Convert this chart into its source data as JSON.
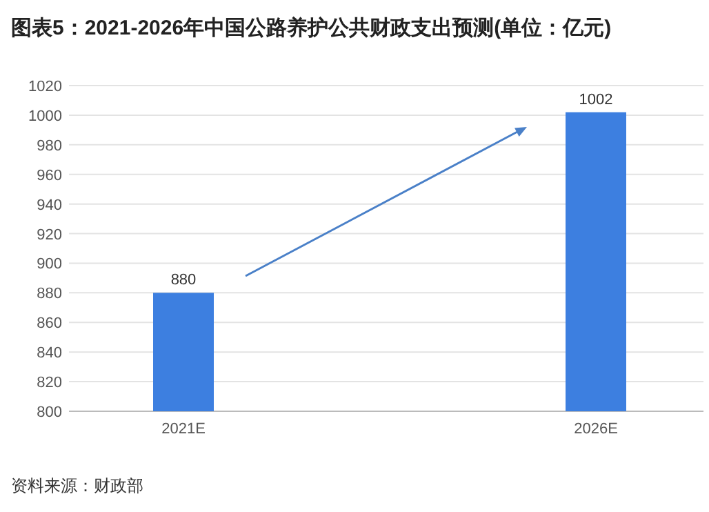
{
  "chart_data": {
    "type": "bar",
    "title": "图表5：2021-2026年中国公路养护公共财政支出预测(单位：亿元)",
    "categories": [
      "2021E",
      "2026E"
    ],
    "values": [
      880,
      1002
    ],
    "color": "#3d7fe0",
    "data_labels": true,
    "ylim": [
      800,
      1020
    ],
    "yticks": [
      800,
      820,
      840,
      860,
      880,
      900,
      920,
      940,
      960,
      980,
      1000,
      1020
    ],
    "grid": "y",
    "annotations": [
      "资料来源：财政部"
    ]
  }
}
